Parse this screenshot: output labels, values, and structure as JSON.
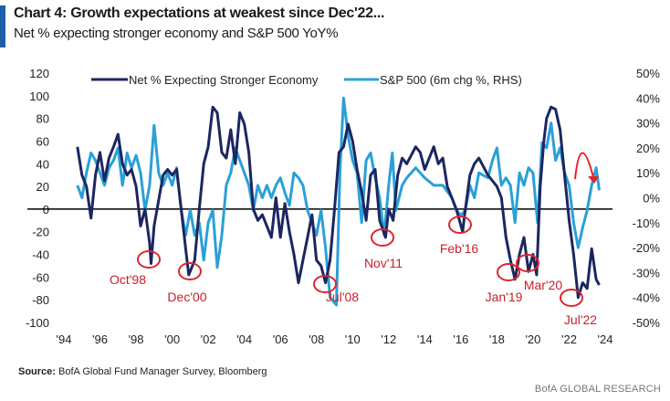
{
  "header": {
    "title": "Chart 4: Growth expectations at weakest since Dec'22...",
    "subtitle": "Net % expecting stronger economy and S&P 500 YoY%"
  },
  "source": {
    "label": "Source:",
    "text": "BofA Global Fund Manager Survey, Bloomberg"
  },
  "footer": "BofA GLOBAL RESEARCH",
  "chart_data": {
    "type": "line",
    "title": "",
    "xlabel": "",
    "ylabel": "",
    "x_range": [
      1994,
      2024
    ],
    "x_ticks": [
      "'94",
      "'96",
      "'98",
      "'00",
      "'02",
      "'04",
      "'06",
      "'08",
      "'10",
      "'12",
      "'14",
      "'16",
      "'18",
      "'20",
      "'22",
      "'24"
    ],
    "y_left": {
      "range": [
        -100,
        120
      ],
      "ticks": [
        "120",
        "100",
        "80",
        "60",
        "40",
        "20",
        "0",
        "-20",
        "-40",
        "-60",
        "-80",
        "-100"
      ]
    },
    "y_right": {
      "range": [
        -50,
        50
      ],
      "ticks": [
        "50%",
        "40%",
        "30%",
        "20%",
        "10%",
        "0%",
        "-10%",
        "-20%",
        "-30%",
        "-40%",
        "-50%"
      ]
    },
    "legend_placement": "top",
    "colors": {
      "net": "#1c2660",
      "sp": "#2aa0d8",
      "annotation": "#e0252b",
      "zero_line": "#000000"
    },
    "series": [
      {
        "name": "Net % Expecting Stronger Economy",
        "axis": "left",
        "x": [
          1994.75,
          1995,
          1995.25,
          1995.5,
          1995.75,
          1996,
          1996.25,
          1996.5,
          1996.75,
          1997,
          1997.25,
          1997.5,
          1997.75,
          1998,
          1998.25,
          1998.5,
          1998.75,
          1998.83,
          1999,
          1999.5,
          1999.75,
          2000,
          2000.25,
          2000.5,
          2000.75,
          2000.92,
          2001.25,
          2001.5,
          2001.75,
          2002,
          2002.25,
          2002.5,
          2002.75,
          2003,
          2003.25,
          2003.5,
          2003.75,
          2004,
          2004.25,
          2004.5,
          2004.75,
          2005,
          2005.5,
          2005.75,
          2006,
          2006.25,
          2006.5,
          2006.75,
          2007,
          2007.25,
          2007.5,
          2007.75,
          2008,
          2008.25,
          2008.5,
          2008.75,
          2009,
          2009.25,
          2009.5,
          2009.75,
          2010,
          2010.25,
          2010.5,
          2010.75,
          2011,
          2011.25,
          2011.5,
          2011.83,
          2012,
          2012.25,
          2012.5,
          2012.75,
          2013,
          2013.5,
          2013.75,
          2014,
          2014.5,
          2014.75,
          2015,
          2015.25,
          2015.5,
          2015.75,
          2016.1,
          2016.25,
          2016.5,
          2016.75,
          2017,
          2017.5,
          2017.75,
          2018,
          2018.25,
          2018.5,
          2018.75,
          2019,
          2019.25,
          2019.5,
          2019.75,
          2020,
          2020.2,
          2020.4,
          2020.6,
          2020.75,
          2021,
          2021.25,
          2021.5,
          2021.75,
          2022,
          2022.25,
          2022.5,
          2022.75,
          2023,
          2023.25,
          2023.5,
          2023.67
        ],
        "values": [
          55,
          30,
          20,
          -8,
          30,
          50,
          25,
          45,
          55,
          66,
          40,
          30,
          35,
          20,
          -15,
          0,
          -30,
          -48,
          -15,
          30,
          35,
          30,
          35,
          0,
          -35,
          -58,
          -45,
          0,
          40,
          55,
          90,
          85,
          50,
          45,
          70,
          40,
          85,
          75,
          50,
          0,
          -10,
          -5,
          -25,
          10,
          -25,
          5,
          -20,
          -40,
          -65,
          -45,
          -25,
          -5,
          -45,
          -50,
          -65,
          -45,
          0,
          50,
          55,
          75,
          60,
          35,
          15,
          -10,
          30,
          35,
          -10,
          -25,
          0,
          -10,
          30,
          45,
          40,
          55,
          50,
          35,
          55,
          40,
          45,
          20,
          10,
          0,
          -20,
          0,
          30,
          40,
          45,
          30,
          25,
          20,
          10,
          -25,
          -45,
          -62,
          -40,
          -25,
          -55,
          -40,
          -58,
          20,
          60,
          80,
          90,
          88,
          70,
          30,
          -10,
          -40,
          -78,
          -65,
          -70,
          -35,
          -62,
          -67
        ]
      },
      {
        "name": "S&P 500 (6m chg %, RHS)",
        "axis": "right",
        "x": [
          1994.75,
          1995,
          1995.25,
          1995.5,
          1995.75,
          1996,
          1996.25,
          1996.5,
          1996.75,
          1997,
          1997.25,
          1997.5,
          1997.75,
          1998,
          1998.25,
          1998.5,
          1998.75,
          1999,
          1999.25,
          1999.5,
          1999.75,
          2000,
          2000.25,
          2000.5,
          2000.75,
          2001,
          2001.25,
          2001.5,
          2001.75,
          2002,
          2002.25,
          2002.5,
          2002.75,
          2003,
          2003.25,
          2003.5,
          2003.75,
          2004,
          2004.25,
          2004.5,
          2004.75,
          2005,
          2005.25,
          2005.5,
          2005.75,
          2006,
          2006.25,
          2006.5,
          2006.75,
          2007,
          2007.25,
          2007.5,
          2007.75,
          2008,
          2008.25,
          2008.5,
          2008.75,
          2009.1,
          2009.3,
          2009.5,
          2009.75,
          2010,
          2010.25,
          2010.5,
          2010.75,
          2011,
          2011.25,
          2011.5,
          2011.75,
          2012,
          2012.2,
          2012.4,
          2012.75,
          2013,
          2013.5,
          2013.75,
          2014,
          2014.5,
          2015,
          2015.5,
          2015.75,
          2016,
          2016.25,
          2016.5,
          2016.75,
          2017,
          2017.5,
          2017.75,
          2018,
          2018.25,
          2018.5,
          2018.75,
          2019,
          2019.25,
          2019.5,
          2019.75,
          2020,
          2020.25,
          2020.5,
          2020.75,
          2021,
          2021.25,
          2021.5,
          2021.75,
          2022,
          2022.25,
          2022.5,
          2022.75,
          2023,
          2023.25,
          2023.5,
          2023.67
        ],
        "values": [
          5,
          0,
          10,
          18,
          15,
          10,
          5,
          12,
          15,
          20,
          5,
          18,
          12,
          17,
          10,
          -5,
          5,
          29,
          10,
          5,
          10,
          5,
          12,
          -5,
          -15,
          -5,
          -15,
          -10,
          -25,
          -10,
          -5,
          -28,
          -15,
          5,
          10,
          20,
          15,
          10,
          5,
          -5,
          5,
          0,
          5,
          0,
          5,
          8,
          2,
          -3,
          10,
          8,
          5,
          -5,
          -10,
          -15,
          -5,
          -20,
          -40,
          -43,
          10,
          40,
          25,
          15,
          10,
          -10,
          15,
          18,
          8,
          0,
          -15,
          5,
          18,
          -5,
          5,
          8,
          12,
          10,
          8,
          5,
          5,
          0,
          -5,
          -7,
          -5,
          5,
          0,
          10,
          8,
          15,
          20,
          5,
          8,
          5,
          -10,
          10,
          5,
          12,
          10,
          -10,
          22,
          20,
          30,
          15,
          20,
          10,
          5,
          -10,
          -20,
          -12,
          -5,
          5,
          12,
          3
        ]
      }
    ],
    "annotations": [
      "Oct'98",
      "Dec'00",
      "Jul'08",
      "Nov'11",
      "Feb'16",
      "Jan'19",
      "Mar'20",
      "Jul'22"
    ]
  }
}
